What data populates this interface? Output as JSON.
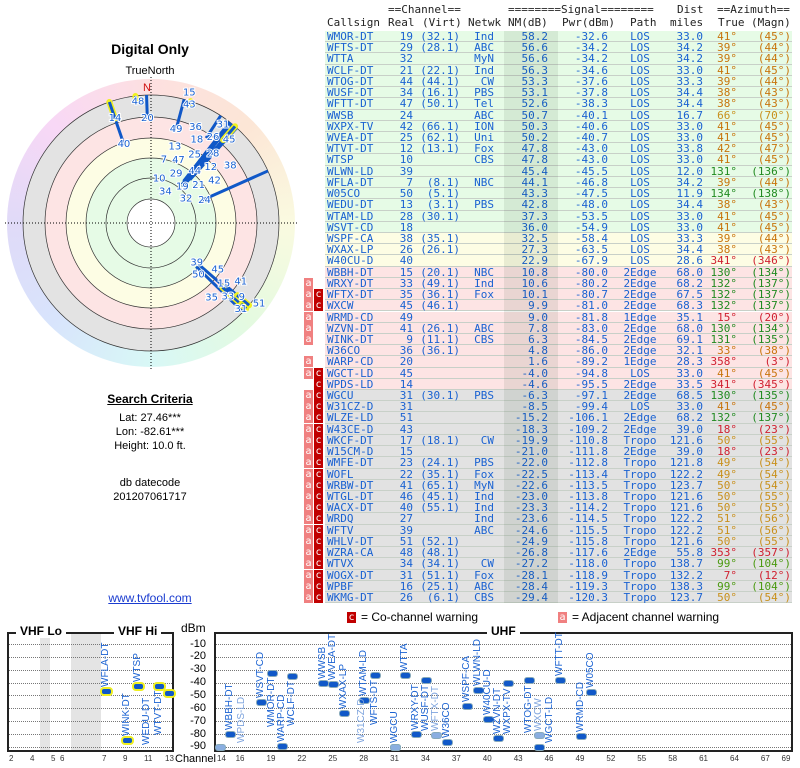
{
  "left": {
    "title": "Digital Only",
    "north_label": "TrueNorth",
    "north_marker": "N",
    "criteria_title": "Search Criteria",
    "lat": "Lat: 27.46***",
    "lon": "Lon: -82.61***",
    "height": "Height: 10.0 ft.",
    "db_label": "db datecode",
    "db_value": "201207061717",
    "link": "www.tvfool.com"
  },
  "table": {
    "header1": {
      "channel": "==Channel==",
      "signal": "========Signal========",
      "dist": "Dist",
      "azimuth": "==Azimuth=="
    },
    "header2": {
      "callsign": "Callsign",
      "real": "Real",
      "virt": "(Virt)",
      "netwk": "Netwk",
      "nm": "NM(dB)",
      "pwr": "Pwr(dBm)",
      "path": "Path",
      "miles": "miles",
      "true": "True",
      "magn": "(Magn)"
    },
    "rows": [
      {
        "call": "WMOR-DT",
        "real": "19",
        "virt": "(32.1)",
        "net": "Ind",
        "nm": "58.2",
        "pwr": "-32.6",
        "path": "LOS",
        "dist": "33.0",
        "az": "41°",
        "mag": "(45°)",
        "c": "#c8740c",
        "band": "g",
        "f": ""
      },
      {
        "call": "WFTS-DT",
        "real": "29",
        "virt": "(28.1)",
        "net": "ABC",
        "nm": "56.6",
        "pwr": "-34.2",
        "path": "LOS",
        "dist": "34.2",
        "az": "39°",
        "mag": "(44°)",
        "c": "#c8740c",
        "band": "g",
        "f": ""
      },
      {
        "call": "WTTA",
        "real": "32",
        "virt": "",
        "net": "MyN",
        "nm": "56.6",
        "pwr": "-34.2",
        "path": "LOS",
        "dist": "34.2",
        "az": "39°",
        "mag": "(44°)",
        "c": "#c8740c",
        "band": "g",
        "f": ""
      },
      {
        "call": "WCLF-DT",
        "real": "21",
        "virt": "(22.1)",
        "net": "Ind",
        "nm": "56.3",
        "pwr": "-34.6",
        "path": "LOS",
        "dist": "33.0",
        "az": "41°",
        "mag": "(45°)",
        "c": "#c8740c",
        "band": "g",
        "f": ""
      },
      {
        "call": "WTOG-DT",
        "real": "44",
        "virt": "(44.1)",
        "net": "CW",
        "nm": "53.3",
        "pwr": "-37.6",
        "path": "LOS",
        "dist": "33.3",
        "az": "39°",
        "mag": "(44°)",
        "c": "#c8740c",
        "band": "g",
        "f": ""
      },
      {
        "call": "WUSF-DT",
        "real": "34",
        "virt": "(16.1)",
        "net": "PBS",
        "nm": "53.1",
        "pwr": "-37.8",
        "path": "LOS",
        "dist": "34.4",
        "az": "38°",
        "mag": "(43°)",
        "c": "#c8740c",
        "band": "g",
        "f": ""
      },
      {
        "call": "WFTT-DT",
        "real": "47",
        "virt": "(50.1)",
        "net": "Tel",
        "nm": "52.6",
        "pwr": "-38.3",
        "path": "LOS",
        "dist": "34.4",
        "az": "38°",
        "mag": "(43°)",
        "c": "#c8740c",
        "band": "g",
        "f": ""
      },
      {
        "call": "WWSB",
        "real": "24",
        "virt": "",
        "net": "ABC",
        "nm": "50.7",
        "pwr": "-40.1",
        "path": "LOS",
        "dist": "16.7",
        "az": "66°",
        "mag": "(70°)",
        "c": "#c8901c",
        "band": "g",
        "f": ""
      },
      {
        "call": "WXPX-TV",
        "real": "42",
        "virt": "(66.1)",
        "net": "ION",
        "nm": "50.3",
        "pwr": "-40.6",
        "path": "LOS",
        "dist": "33.0",
        "az": "41°",
        "mag": "(45°)",
        "c": "#c8740c",
        "band": "g",
        "f": ""
      },
      {
        "call": "WVEA-DT",
        "real": "25",
        "virt": "(62.1)",
        "net": "Uni",
        "nm": "50.2",
        "pwr": "-40.7",
        "path": "LOS",
        "dist": "33.0",
        "az": "41°",
        "mag": "(45°)",
        "c": "#c8740c",
        "band": "g",
        "f": ""
      },
      {
        "call": "WTVT-DT",
        "real": "12",
        "virt": "(13.1)",
        "net": "Fox",
        "nm": "47.8",
        "pwr": "-43.0",
        "path": "LOS",
        "dist": "33.8",
        "az": "42°",
        "mag": "(47°)",
        "c": "#c8740c",
        "band": "g",
        "f": ""
      },
      {
        "call": "WTSP",
        "real": "10",
        "virt": "",
        "net": "CBS",
        "nm": "47.8",
        "pwr": "-43.0",
        "path": "LOS",
        "dist": "33.0",
        "az": "41°",
        "mag": "(45°)",
        "c": "#c8740c",
        "band": "g",
        "f": ""
      },
      {
        "call": "WLWN-LD",
        "real": "39",
        "virt": "",
        "net": "",
        "nm": "45.4",
        "pwr": "-45.5",
        "path": "LOS",
        "dist": "12.0",
        "az": "131°",
        "mag": "(136°)",
        "c": "#208a20",
        "band": "g",
        "f": ""
      },
      {
        "call": "WFLA-DT",
        "real": "7",
        "virt": "(8.1)",
        "net": "NBC",
        "nm": "44.1",
        "pwr": "-46.8",
        "path": "LOS",
        "dist": "34.2",
        "az": "39°",
        "mag": "(44°)",
        "c": "#c8740c",
        "band": "g",
        "f": ""
      },
      {
        "call": "W05CO",
        "real": "50",
        "virt": "(5.1)",
        "net": "",
        "nm": "43.3",
        "pwr": "-47.5",
        "path": "LOS",
        "dist": "11.9",
        "az": "134°",
        "mag": "(138°)",
        "c": "#208a20",
        "band": "g",
        "f": ""
      },
      {
        "call": "WEDU-DT",
        "real": "13",
        "virt": "(3.1)",
        "net": "PBS",
        "nm": "42.8",
        "pwr": "-48.0",
        "path": "LOS",
        "dist": "34.4",
        "az": "38°",
        "mag": "(43°)",
        "c": "#c8740c",
        "band": "g",
        "f": ""
      },
      {
        "call": "WTAM-LD",
        "real": "28",
        "virt": "(30.1)",
        "net": "",
        "nm": "37.3",
        "pwr": "-53.5",
        "path": "LOS",
        "dist": "33.0",
        "az": "41°",
        "mag": "(45°)",
        "c": "#c8740c",
        "band": "g",
        "f": ""
      },
      {
        "call": "WSVT-CD",
        "real": "18",
        "virt": "",
        "net": "",
        "nm": "36.0",
        "pwr": "-54.9",
        "path": "LOS",
        "dist": "33.0",
        "az": "41°",
        "mag": "(45°)",
        "c": "#c8740c",
        "band": "g",
        "f": ""
      },
      {
        "call": "WSPF-CA",
        "real": "38",
        "virt": "(35.1)",
        "net": "",
        "nm": "32.5",
        "pwr": "-58.4",
        "path": "LOS",
        "dist": "33.3",
        "az": "39°",
        "mag": "(44°)",
        "c": "#c8740c",
        "band": "y",
        "f": ""
      },
      {
        "call": "WXAX-LP",
        "real": "26",
        "virt": "(26.1)",
        "net": "",
        "nm": "27.3",
        "pwr": "-63.5",
        "path": "LOS",
        "dist": "34.4",
        "az": "38°",
        "mag": "(43°)",
        "c": "#c8740c",
        "band": "y",
        "f": ""
      },
      {
        "call": "W40CU-D",
        "real": "40",
        "virt": "",
        "net": "",
        "nm": "22.9",
        "pwr": "-67.9",
        "path": "LOS",
        "dist": "28.6",
        "az": "341°",
        "mag": "(346°)",
        "c": "#d02030",
        "band": "y",
        "f": ""
      },
      {
        "call": "WBBH-DT",
        "real": "15",
        "virt": "(20.1)",
        "net": "NBC",
        "nm": "10.8",
        "pwr": "-80.0",
        "path": "2Edge",
        "dist": "68.0",
        "az": "130°",
        "mag": "(134°)",
        "c": "#208a20",
        "band": "p",
        "f": ""
      },
      {
        "call": "WRXY-DT",
        "real": "33",
        "virt": "(49.1)",
        "net": "Ind",
        "nm": "10.6",
        "pwr": "-80.2",
        "path": "2Edge",
        "dist": "68.2",
        "az": "132°",
        "mag": "(137°)",
        "c": "#208a20",
        "band": "p",
        "f": "a"
      },
      {
        "call": "WFTX-DT",
        "real": "35",
        "virt": "(36.1)",
        "net": "Fox",
        "nm": "10.1",
        "pwr": "-80.7",
        "path": "2Edge",
        "dist": "67.5",
        "az": "132°",
        "mag": "(137°)",
        "c": "#208a20",
        "band": "p",
        "f": "ac",
        "fade": true
      },
      {
        "call": "WXCW",
        "real": "45",
        "virt": "(46.1)",
        "net": "",
        "nm": "9.9",
        "pwr": "-81.0",
        "path": "2Edge",
        "dist": "68.3",
        "az": "132°",
        "mag": "(137°)",
        "c": "#208a20",
        "band": "p",
        "f": "ac",
        "fade": true
      },
      {
        "call": "WRMD-CD",
        "real": "49",
        "virt": "",
        "net": "",
        "nm": "9.0",
        "pwr": "-81.8",
        "path": "1Edge",
        "dist": "35.1",
        "az": "15°",
        "mag": "(20°)",
        "c": "#d02030",
        "band": "p",
        "f": "a"
      },
      {
        "call": "WZVN-DT",
        "real": "41",
        "virt": "(26.1)",
        "net": "ABC",
        "nm": "7.8",
        "pwr": "-83.0",
        "path": "2Edge",
        "dist": "68.0",
        "az": "130°",
        "mag": "(134°)",
        "c": "#208a20",
        "band": "p",
        "f": "a"
      },
      {
        "call": "WINK-DT",
        "real": "9",
        "virt": "(11.1)",
        "net": "CBS",
        "nm": "6.3",
        "pwr": "-84.5",
        "path": "2Edge",
        "dist": "69.1",
        "az": "131°",
        "mag": "(135°)",
        "c": "#208a20",
        "band": "p",
        "f": "a"
      },
      {
        "call": "W36CO",
        "real": "36",
        "virt": "(36.1)",
        "net": "",
        "nm": "4.8",
        "pwr": "-86.0",
        "path": "2Edge",
        "dist": "32.1",
        "az": "33°",
        "mag": "(38°)",
        "c": "#c8740c",
        "band": "p",
        "f": ""
      },
      {
        "call": "WARP-CD",
        "real": "20",
        "virt": "",
        "net": "",
        "nm": "1.6",
        "pwr": "-89.2",
        "path": "1Edge",
        "dist": "28.3",
        "az": "358°",
        "mag": "(3°)",
        "c": "#d02030",
        "band": "p",
        "f": "a"
      },
      {
        "call": "WGCT-LD",
        "real": "45",
        "virt": "",
        "net": "",
        "nm": "-4.0",
        "pwr": "-94.8",
        "path": "LOS",
        "dist": "33.0",
        "az": "41°",
        "mag": "(45°)",
        "c": "#c8740c",
        "band": "p",
        "f": "ac"
      },
      {
        "call": "WPDS-LD",
        "real": "14",
        "virt": "",
        "net": "",
        "nm": "-4.6",
        "pwr": "-95.5",
        "path": "2Edge",
        "dist": "33.5",
        "az": "341°",
        "mag": "(345°)",
        "c": "#d02030",
        "band": "p",
        "f": "c",
        "fade": true
      },
      {
        "call": "WGCU",
        "real": "31",
        "virt": "(30.1)",
        "net": "PBS",
        "nm": "-6.3",
        "pwr": "-97.1",
        "path": "2Edge",
        "dist": "68.5",
        "az": "130°",
        "mag": "(135°)",
        "c": "#208a20",
        "band": "x",
        "f": "ac"
      },
      {
        "call": "W31CZ-D",
        "real": "31",
        "virt": "",
        "net": "",
        "nm": "-8.5",
        "pwr": "-99.4",
        "path": "LOS",
        "dist": "33.0",
        "az": "41°",
        "mag": "(45°)",
        "c": "#c8740c",
        "band": "x",
        "f": "ac",
        "fade": true
      },
      {
        "call": "WLZE-LD",
        "real": "51",
        "virt": "",
        "net": "",
        "nm": "-15.2",
        "pwr": "-106.1",
        "path": "2Edge",
        "dist": "68.2",
        "az": "132°",
        "mag": "(137°)",
        "c": "#208a20",
        "band": "x",
        "f": "ac"
      },
      {
        "call": "W43CE-D",
        "real": "43",
        "virt": "",
        "net": "",
        "nm": "-18.3",
        "pwr": "-109.2",
        "path": "2Edge",
        "dist": "39.0",
        "az": "18°",
        "mag": "(23°)",
        "c": "#d02030",
        "band": "x",
        "f": "ac"
      },
      {
        "call": "WKCF-DT",
        "real": "17",
        "virt": "(18.1)",
        "net": "CW",
        "nm": "-19.9",
        "pwr": "-110.8",
        "path": "Tropo",
        "dist": "121.6",
        "az": "50°",
        "mag": "(55°)",
        "c": "#c8901c",
        "band": "x",
        "f": "ac"
      },
      {
        "call": "W15CM-D",
        "real": "15",
        "virt": "",
        "net": "",
        "nm": "-21.0",
        "pwr": "-111.8",
        "path": "2Edge",
        "dist": "39.0",
        "az": "18°",
        "mag": "(23°)",
        "c": "#d02030",
        "band": "x",
        "f": "ac"
      },
      {
        "call": "WMFE-DT",
        "real": "23",
        "virt": "(24.1)",
        "net": "PBS",
        "nm": "-22.0",
        "pwr": "-112.8",
        "path": "Tropo",
        "dist": "121.8",
        "az": "49°",
        "mag": "(54°)",
        "c": "#c8901c",
        "band": "x",
        "f": "ac"
      },
      {
        "call": "WOFL",
        "real": "22",
        "virt": "(35.1)",
        "net": "Fox",
        "nm": "-22.5",
        "pwr": "-113.4",
        "path": "Tropo",
        "dist": "122.2",
        "az": "49°",
        "mag": "(54°)",
        "c": "#c8901c",
        "band": "x",
        "f": "ac"
      },
      {
        "call": "WRBW-DT",
        "real": "41",
        "virt": "(65.1)",
        "net": "MyN",
        "nm": "-22.6",
        "pwr": "-113.5",
        "path": "Tropo",
        "dist": "123.7",
        "az": "50°",
        "mag": "(54°)",
        "c": "#c8901c",
        "band": "x",
        "f": "ac"
      },
      {
        "call": "WTGL-DT",
        "real": "46",
        "virt": "(45.1)",
        "net": "Ind",
        "nm": "-23.0",
        "pwr": "-113.8",
        "path": "Tropo",
        "dist": "121.6",
        "az": "50°",
        "mag": "(55°)",
        "c": "#c8901c",
        "band": "x",
        "f": "ac"
      },
      {
        "call": "WACX-DT",
        "real": "40",
        "virt": "(55.1)",
        "net": "Ind",
        "nm": "-23.3",
        "pwr": "-114.2",
        "path": "Tropo",
        "dist": "121.6",
        "az": "50°",
        "mag": "(55°)",
        "c": "#c8901c",
        "band": "x",
        "f": "ac"
      },
      {
        "call": "WRDQ",
        "real": "27",
        "virt": "",
        "net": "Ind",
        "nm": "-23.6",
        "pwr": "-114.5",
        "path": "Tropo",
        "dist": "122.2",
        "az": "51°",
        "mag": "(56°)",
        "c": "#c8901c",
        "band": "x",
        "f": "ac"
      },
      {
        "call": "WFTV",
        "real": "39",
        "virt": "",
        "net": "ABC",
        "nm": "-24.6",
        "pwr": "-115.5",
        "path": "Tropo",
        "dist": "122.2",
        "az": "51°",
        "mag": "(56°)",
        "c": "#c8901c",
        "band": "x",
        "f": "ac"
      },
      {
        "call": "WHLV-DT",
        "real": "51",
        "virt": "(52.1)",
        "net": "",
        "nm": "-24.9",
        "pwr": "-115.8",
        "path": "Tropo",
        "dist": "121.6",
        "az": "50°",
        "mag": "(55°)",
        "c": "#c8901c",
        "band": "x",
        "f": "ac"
      },
      {
        "call": "WZRA-CA",
        "real": "48",
        "virt": "(48.1)",
        "net": "",
        "nm": "-26.8",
        "pwr": "-117.6",
        "path": "2Edge",
        "dist": "55.8",
        "az": "353°",
        "mag": "(357°)",
        "c": "#d02030",
        "band": "x",
        "f": "ac"
      },
      {
        "call": "WTVX",
        "real": "34",
        "virt": "(34.1)",
        "net": "CW",
        "nm": "-27.2",
        "pwr": "-118.0",
        "path": "Tropo",
        "dist": "138.7",
        "az": "99°",
        "mag": "(104°)",
        "c": "#4a9a10",
        "band": "x",
        "f": "ac"
      },
      {
        "call": "WOGX-DT",
        "real": "31",
        "virt": "(51.1)",
        "net": "Fox",
        "nm": "-28.1",
        "pwr": "-118.9",
        "path": "Tropo",
        "dist": "132.2",
        "az": "7°",
        "mag": "(12°)",
        "c": "#d02030",
        "band": "x",
        "f": "ac"
      },
      {
        "call": "WPBF",
        "real": "16",
        "virt": "(25.1)",
        "net": "ABC",
        "nm": "-28.4",
        "pwr": "-119.3",
        "path": "Tropo",
        "dist": "138.3",
        "az": "99°",
        "mag": "(104°)",
        "c": "#4a9a10",
        "band": "x",
        "f": "ac"
      },
      {
        "call": "WKMG-DT",
        "real": "26",
        "virt": "(6.1)",
        "net": "CBS",
        "nm": "-29.4",
        "pwr": "-120.3",
        "path": "Tropo",
        "dist": "123.7",
        "az": "50°",
        "mag": "(54°)",
        "c": "#c8901c",
        "band": "x",
        "f": "ac"
      }
    ]
  },
  "flags": {
    "a": "a",
    "c": "c"
  },
  "chart": {
    "vhf_lo": "VHF Lo",
    "vhf_hi": "VHF Hi",
    "uhf": "UHF",
    "dbm": "dBm",
    "channel": "Channel",
    "co_legend": "= Co-channel warning",
    "adj_legend": "= Adjacent channel warning",
    "dbm_ticks": [
      "-10",
      "-20",
      "-30",
      "-40",
      "-50",
      "-60",
      "-70",
      "-80",
      "-90"
    ],
    "vhf_ticks": [
      "2",
      "4",
      "5",
      "6",
      "7",
      "9",
      "11",
      "13"
    ],
    "uhf_ticks": [
      "14",
      "16",
      "19",
      "22",
      "25",
      "28",
      "31",
      "34",
      "37",
      "40",
      "43",
      "46",
      "49",
      "52",
      "55",
      "58",
      "61",
      "64",
      "67",
      "69"
    ]
  },
  "colors": {
    "link": "#1a62d2",
    "co": "#c00000",
    "adj": "#f08080"
  }
}
